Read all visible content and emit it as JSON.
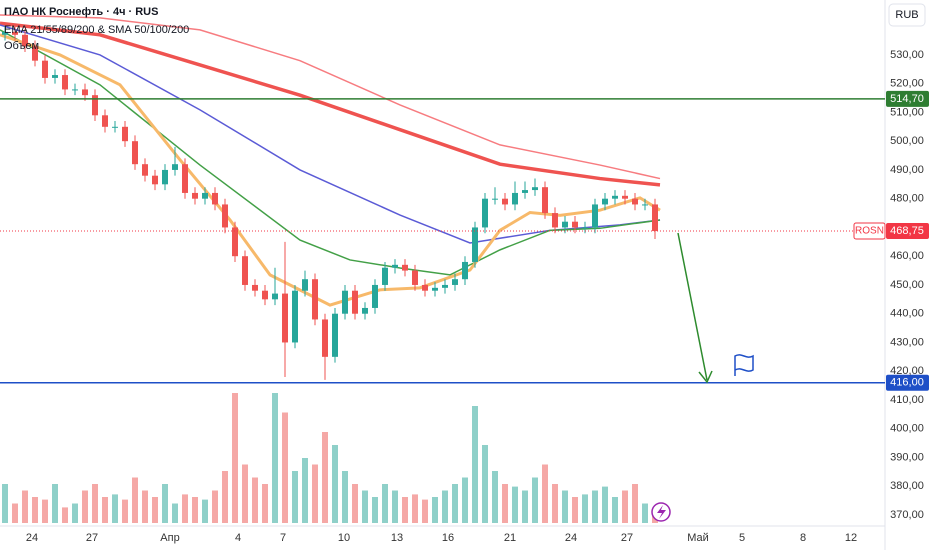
{
  "chart_data": {
    "type": "candlestick",
    "title": "ПАО НК Роснефть · 4ч · RUS",
    "indicators_label": "EMA 21/55/89/200 & SMA 50/100/200",
    "volume_label": "Объем",
    "currency": "RUB",
    "ylim": [
      361.3,
      549.1
    ],
    "yticks": [
      {
        "value": 530,
        "label": "530,00"
      },
      {
        "value": 520,
        "label": "520,00"
      },
      {
        "value": 510,
        "label": "510,00"
      },
      {
        "value": 500,
        "label": "500,00"
      },
      {
        "value": 490,
        "label": "490,00"
      },
      {
        "value": 480,
        "label": "480,00"
      },
      {
        "value": 460,
        "label": "460,00"
      },
      {
        "value": 450,
        "label": "450,00"
      },
      {
        "value": 440,
        "label": "440,00"
      },
      {
        "value": 430,
        "label": "430,00"
      },
      {
        "value": 420,
        "label": "420,00"
      },
      {
        "value": 410,
        "label": "410,00"
      },
      {
        "value": 400,
        "label": "400,00"
      },
      {
        "value": 390,
        "label": "390,00"
      },
      {
        "value": 380,
        "label": "380,00"
      },
      {
        "value": 370,
        "label": "370,00"
      }
    ],
    "xlim": [
      -0.5,
      88
    ],
    "xticks": [
      {
        "value": 2.7,
        "label": "24"
      },
      {
        "value": 8.7,
        "label": "27"
      },
      {
        "value": 16.5,
        "label": "Апр"
      },
      {
        "value": 23.3,
        "label": "4"
      },
      {
        "value": 27.8,
        "label": "7"
      },
      {
        "value": 33.9,
        "label": "10"
      },
      {
        "value": 39.2,
        "label": "13"
      },
      {
        "value": 44.3,
        "label": "16"
      },
      {
        "value": 50.5,
        "label": "21"
      },
      {
        "value": 56.6,
        "label": "24"
      },
      {
        "value": 62.2,
        "label": "27"
      },
      {
        "value": 69.3,
        "label": "Май"
      },
      {
        "value": 73.7,
        "label": "5"
      },
      {
        "value": 79.8,
        "label": "8"
      },
      {
        "value": 84.6,
        "label": "12"
      }
    ],
    "up_color": "#26a69a",
    "down_color": "#ef5350",
    "volume_up_color": "#8fd0c9",
    "volume_down_color": "#f5a8a6",
    "open": [
      537,
      538,
      537,
      533,
      528,
      522,
      523,
      518,
      518,
      516,
      509,
      505,
      505,
      500,
      492,
      488,
      485,
      490,
      492,
      482,
      480,
      482,
      478,
      470,
      460,
      450,
      448,
      445,
      447,
      430,
      448,
      452,
      438,
      425,
      440,
      448,
      440,
      442,
      450,
      456,
      457,
      455,
      450,
      448,
      449,
      450,
      452,
      458,
      470,
      480,
      480,
      478,
      482,
      483,
      484,
      475,
      470,
      472,
      470,
      470,
      478,
      480,
      481,
      480,
      478,
      478
    ],
    "high": [
      540,
      540,
      539,
      535,
      530,
      525,
      525,
      520,
      520,
      518,
      511,
      507,
      507,
      502,
      494,
      490,
      492,
      498,
      494,
      484,
      484,
      484,
      480,
      472,
      462,
      452,
      450,
      456,
      465,
      450,
      455,
      454,
      440,
      442,
      450,
      450,
      444,
      452,
      458,
      459,
      459,
      457,
      452,
      451,
      452,
      454,
      460,
      472,
      482,
      484,
      482,
      486,
      486,
      487,
      486,
      477,
      474,
      474,
      472,
      480,
      482,
      483,
      483,
      482,
      480,
      480
    ],
    "low": [
      535,
      535,
      531,
      526,
      520,
      520,
      516,
      516,
      514,
      507,
      503,
      503,
      498,
      490,
      486,
      483,
      483,
      488,
      480,
      478,
      478,
      476,
      468,
      458,
      448,
      446,
      443,
      443,
      418,
      428,
      446,
      436,
      417,
      423,
      438,
      438,
      438,
      440,
      448,
      454,
      453,
      448,
      446,
      446,
      447,
      448,
      450,
      456,
      468,
      478,
      476,
      476,
      480,
      481,
      473,
      468,
      468,
      468,
      468,
      468,
      476,
      478,
      478,
      476,
      476,
      466
    ],
    "close": [
      538,
      537,
      533,
      528,
      522,
      523,
      518,
      518,
      516,
      509,
      505,
      505,
      500,
      492,
      488,
      485,
      490,
      492,
      482,
      480,
      482,
      478,
      470,
      460,
      450,
      448,
      445,
      447,
      430,
      448,
      452,
      438,
      425,
      440,
      448,
      440,
      442,
      450,
      456,
      457,
      455,
      450,
      448,
      449,
      450,
      452,
      458,
      470,
      480,
      480,
      478,
      482,
      483,
      484,
      475,
      470,
      472,
      470,
      470,
      478,
      480,
      481,
      480,
      478,
      478,
      468.75
    ],
    "volume": [
      30,
      15,
      25,
      20,
      18,
      30,
      12,
      15,
      25,
      30,
      20,
      22,
      18,
      35,
      25,
      20,
      30,
      15,
      22,
      20,
      18,
      25,
      40,
      100,
      45,
      35,
      30,
      100,
      85,
      40,
      50,
      45,
      70,
      60,
      40,
      30,
      25,
      20,
      30,
      25,
      20,
      22,
      18,
      20,
      25,
      30,
      35,
      90,
      60,
      40,
      30,
      28,
      25,
      35,
      45,
      30,
      25,
      20,
      22,
      25,
      28,
      20,
      25,
      30,
      15,
      10
    ],
    "lines": [
      {
        "color": "#f77c80",
        "width": 1.5,
        "x": [
          -0.5,
          9.5,
          19.5,
          29.5,
          39.5,
          49.5,
          59.5,
          65.5
        ],
        "values": [
          543.9,
          542.9,
          538.7,
          528,
          512.6,
          498.7,
          491.7,
          487
        ]
      },
      {
        "color": "#ef5350",
        "width": 3.5,
        "x": [
          -0.5,
          9.5,
          19.5,
          29.5,
          39.5,
          49.5,
          59.5,
          65.5
        ],
        "values": [
          541,
          537,
          526.5,
          516,
          504,
          492,
          487,
          484.8
        ]
      },
      {
        "color": "#5b5bd6",
        "width": 1.5,
        "x": [
          -0.5,
          9.5,
          19.5,
          29.5,
          39.5,
          46.5,
          54.5,
          61.5,
          65.5
        ],
        "values": [
          540.4,
          530,
          510.9,
          490,
          474.3,
          464.6,
          469,
          470.9,
          472.6
        ]
      },
      {
        "color": "#43a047",
        "width": 1.5,
        "x": [
          -0.5,
          9.5,
          19.5,
          29.5,
          34.5,
          39.5,
          44.5,
          49.5,
          54.5,
          59.5,
          65.5
        ],
        "values": [
          538.7,
          519.6,
          491.7,
          465.6,
          458.7,
          455.9,
          453.5,
          462.2,
          469,
          469.7,
          472.6
        ]
      },
      {
        "color": "#f7b96a",
        "width": 3,
        "x": [
          -0.5,
          5.5,
          11.5,
          17.5,
          22.5,
          26.5,
          32.5,
          37.5,
          41.5,
          46.5,
          49.5,
          52.5,
          55.5,
          59.5,
          63.5,
          65.5
        ],
        "values": [
          537,
          530,
          519.6,
          493.5,
          472.6,
          453.5,
          443,
          448.3,
          449,
          455.2,
          469,
          475.2,
          474.2,
          476,
          480.3,
          476
        ]
      }
    ],
    "levels": [
      {
        "value": 514.7,
        "label": "514,70",
        "color": "#2e7d32"
      },
      {
        "value": 416,
        "label": "416,00",
        "color": "#1e4fc7"
      }
    ],
    "last": {
      "symbol": "ROSN",
      "value": 468.75,
      "label": "468,75",
      "color": "#f23645"
    }
  }
}
